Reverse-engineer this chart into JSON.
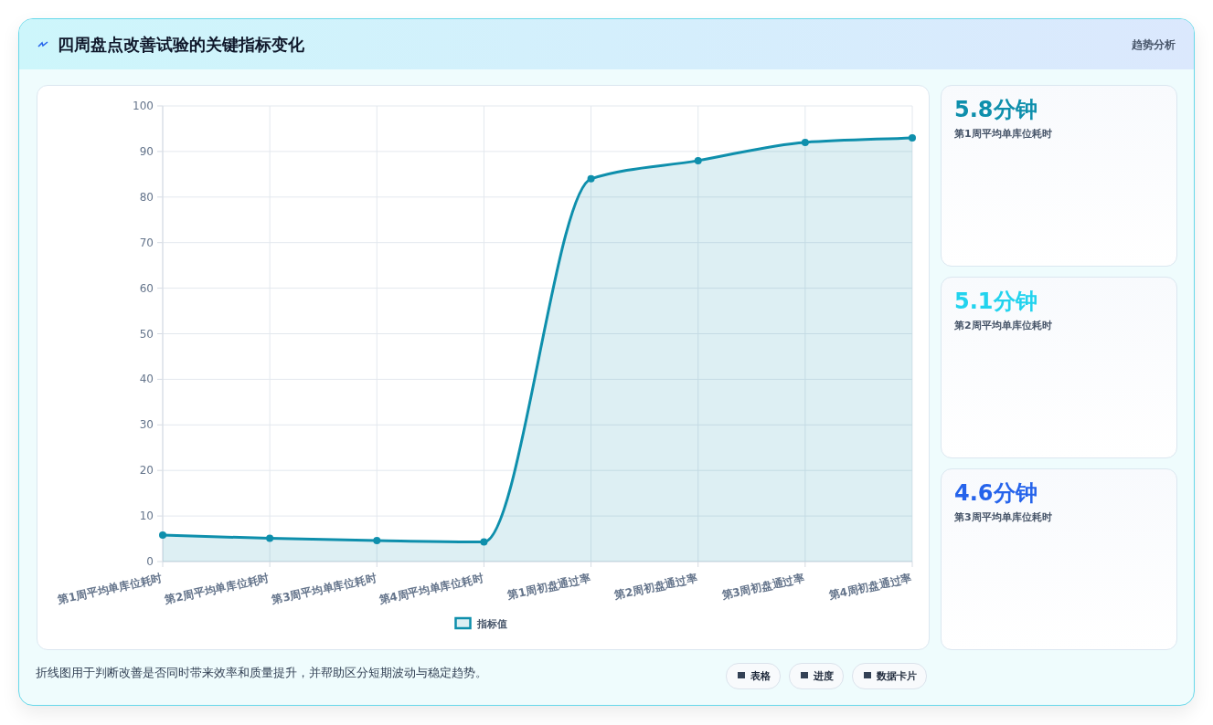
{
  "chart_data": [
    {
      "type": "area",
      "title": "四周盘点改善试验的关键指标变化",
      "categories": [
        "第1周平均单库位耗时",
        "第2周平均单库位耗时",
        "第3周平均单库位耗时",
        "第4周平均单库位耗时",
        "第1周初盘通过率",
        "第2周初盘通过率",
        "第3周初盘通过率",
        "第4周初盘通过率"
      ],
      "series": [
        {
          "name": "指标值",
          "color": "#0e8fac",
          "values": [
            5.8,
            5.1,
            4.6,
            4.3,
            84,
            88,
            92,
            93
          ]
        }
      ],
      "ylim": [
        0,
        100
      ],
      "yticks": [
        0,
        10,
        20,
        30,
        40,
        50,
        60,
        70,
        80,
        90,
        100
      ],
      "grid": true,
      "legend": "bottom",
      "marker": "circle",
      "line_style": "solid",
      "annotations": [
        "折线图用于判断改善是否同时带来效率和质量提升，并帮助区分短期波动与稳定趋势。",
        "表格",
        "进度",
        "数据卡片"
      ]
    },
    {
      "type": "other",
      "title": "趋势分析",
      "categories": [
        "第1周平均单库位耗时",
        "第2周平均单库位耗时",
        "第3周平均单库位耗时"
      ],
      "value_labels": [
        "5.8分钟",
        "5.1分钟",
        "4.6分钟"
      ]
    }
  ]
}
